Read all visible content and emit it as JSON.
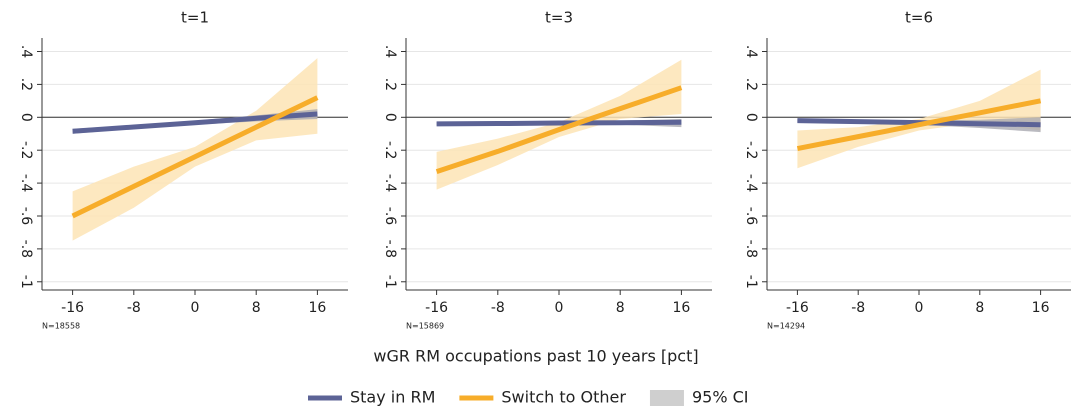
{
  "chart_data": [
    {
      "type": "line",
      "title": "t=1",
      "note": "N=18558",
      "x": [
        -16,
        -8,
        0,
        8,
        16
      ],
      "xlim": [
        -20,
        20
      ],
      "xticks": [
        -16,
        -8,
        0,
        8,
        16
      ],
      "ylim": [
        -1.05,
        0.47
      ],
      "yticks": [
        {
          "value": 0.4,
          "label": ".4"
        },
        {
          "value": 0.2,
          "label": ".2"
        },
        0,
        {
          "value": -0.2,
          "label": "-.2"
        },
        {
          "value": -0.4,
          "label": "-.4"
        },
        {
          "value": -0.6,
          "label": "-.6"
        },
        {
          "value": -0.8,
          "label": "-.8"
        },
        -1
      ],
      "grid": true,
      "zero_line": true,
      "series": [
        {
          "name": "Stay in RM",
          "color": "#5c6396",
          "ci_color": "#a9a9b0",
          "values": [
            -0.085,
            -0.059,
            -0.033,
            -0.006,
            0.02
          ],
          "ci_lower": [
            -0.1,
            -0.07,
            -0.045,
            -0.025,
            -0.01
          ],
          "ci_upper": [
            -0.07,
            -0.048,
            -0.02,
            0.012,
            0.05
          ]
        },
        {
          "name": "Switch to Other",
          "color": "#f7ad2a",
          "ci_color": "#fde4b5",
          "values": [
            -0.6,
            -0.42,
            -0.24,
            -0.06,
            0.12
          ],
          "ci_lower": [
            -0.75,
            -0.55,
            -0.3,
            -0.14,
            -0.1
          ],
          "ci_upper": [
            -0.45,
            -0.3,
            -0.18,
            0.04,
            0.36
          ]
        }
      ]
    },
    {
      "type": "line",
      "title": "t=3",
      "note": "N=15869",
      "x": [
        -16,
        -8,
        0,
        8,
        16
      ],
      "xlim": [
        -20,
        20
      ],
      "xticks": [
        -16,
        -8,
        0,
        8,
        16
      ],
      "ylim": [
        -1.05,
        0.47
      ],
      "yticks": [
        {
          "value": 0.4,
          "label": ".4"
        },
        {
          "value": 0.2,
          "label": ".2"
        },
        0,
        {
          "value": -0.2,
          "label": "-.2"
        },
        {
          "value": -0.4,
          "label": "-.4"
        },
        {
          "value": -0.6,
          "label": "-.6"
        },
        {
          "value": -0.8,
          "label": "-.8"
        },
        -1
      ],
      "grid": true,
      "zero_line": true,
      "series": [
        {
          "name": "Stay in RM",
          "color": "#5c6396",
          "ci_color": "#a9a9b0",
          "values": [
            -0.04,
            -0.038,
            -0.035,
            -0.033,
            -0.03
          ],
          "ci_lower": [
            -0.05,
            -0.045,
            -0.042,
            -0.045,
            -0.06
          ],
          "ci_upper": [
            -0.03,
            -0.03,
            -0.028,
            -0.02,
            -0.01
          ]
        },
        {
          "name": "Switch to Other",
          "color": "#f7ad2a",
          "ci_color": "#fde4b5",
          "values": [
            -0.33,
            -0.2075,
            -0.075,
            0.0525,
            0.18
          ],
          "ci_lower": [
            -0.44,
            -0.29,
            -0.12,
            -0.01,
            0.02
          ],
          "ci_upper": [
            -0.21,
            -0.13,
            -0.03,
            0.13,
            0.35
          ]
        }
      ]
    },
    {
      "type": "line",
      "title": "t=6",
      "note": "N=14294",
      "x": [
        -16,
        -8,
        0,
        8,
        16
      ],
      "xlim": [
        -20,
        20
      ],
      "xticks": [
        -16,
        -8,
        0,
        8,
        16
      ],
      "ylim": [
        -1.05,
        0.47
      ],
      "yticks": [
        {
          "value": 0.4,
          "label": ".4"
        },
        {
          "value": 0.2,
          "label": ".2"
        },
        0,
        {
          "value": -0.2,
          "label": "-.2"
        },
        {
          "value": -0.4,
          "label": "-.4"
        },
        {
          "value": -0.6,
          "label": "-.6"
        },
        {
          "value": -0.8,
          "label": "-.8"
        },
        -1
      ],
      "grid": true,
      "zero_line": true,
      "series": [
        {
          "name": "Stay in RM",
          "color": "#5c6396",
          "ci_color": "#a9a9b0",
          "values": [
            -0.02,
            -0.026,
            -0.032,
            -0.039,
            -0.045
          ],
          "ci_lower": [
            -0.03,
            -0.035,
            -0.045,
            -0.065,
            -0.09
          ],
          "ci_upper": [
            -0.01,
            -0.017,
            -0.02,
            -0.015,
            0.0
          ]
        },
        {
          "name": "Switch to Other",
          "color": "#f7ad2a",
          "ci_color": "#fde4b5",
          "values": [
            -0.19,
            -0.1175,
            -0.045,
            0.0275,
            0.1
          ],
          "ci_lower": [
            -0.31,
            -0.18,
            -0.08,
            -0.03,
            -0.08
          ],
          "ci_upper": [
            -0.08,
            -0.06,
            -0.01,
            0.1,
            0.29
          ]
        }
      ]
    }
  ],
  "xlabel": "wGR RM occupations past 10 years [pct]",
  "ci_label": "95% CI",
  "ci_legend_color": "#cfcfcf"
}
